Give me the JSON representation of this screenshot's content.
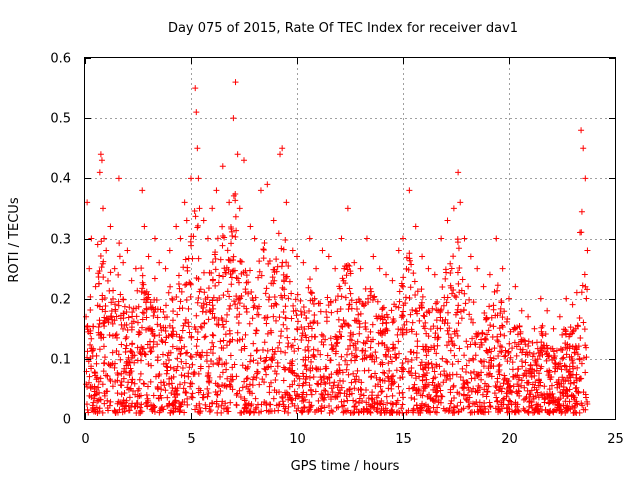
{
  "chart_data": {
    "type": "scatter",
    "title": "Day 075 of 2015, Rate Of TEC Index for receiver dav1",
    "xlabel": "GPS time / hours",
    "ylabel": "ROTI / TECUs",
    "xlim": [
      0,
      25
    ],
    "ylim": [
      0,
      0.6
    ],
    "xticks": [
      "0",
      "5",
      "10",
      "15",
      "20",
      "25"
    ],
    "yticks": [
      "0",
      "0.1",
      "0.2",
      "0.3",
      "0.4",
      "0.5",
      "0.6"
    ],
    "grid": true,
    "marker": "+",
    "series_color": "#ff0000",
    "series": [
      {
        "name": "ROTI",
        "x": [
          0.05,
          0.1,
          0.2,
          0.3,
          0.5,
          0.6,
          0.7,
          0.75,
          0.8,
          0.85,
          0.9,
          1.0,
          1.2,
          1.4,
          1.6,
          1.8,
          2.0,
          2.2,
          2.4,
          2.7,
          2.8,
          3.0,
          3.3,
          3.5,
          3.8,
          4.0,
          4.3,
          4.5,
          4.7,
          4.8,
          5.0,
          5.2,
          5.25,
          5.3,
          5.35,
          5.4,
          5.6,
          5.8,
          6.0,
          6.2,
          6.5,
          6.8,
          7.0,
          7.1,
          7.2,
          7.3,
          7.5,
          7.8,
          8.0,
          8.3,
          8.6,
          8.9,
          9.2,
          9.3,
          9.5,
          9.8,
          10.0,
          10.3,
          10.6,
          10.9,
          11.2,
          11.5,
          11.8,
          12.1,
          12.4,
          12.7,
          13.0,
          13.3,
          13.6,
          13.9,
          14.2,
          14.5,
          14.8,
          15.0,
          15.3,
          15.6,
          15.9,
          16.2,
          16.5,
          16.8,
          17.1,
          17.4,
          17.6,
          17.7,
          17.9,
          18.2,
          18.5,
          18.8,
          19.1,
          19.4,
          19.7,
          20.0,
          20.3,
          20.6,
          20.9,
          21.2,
          21.5,
          21.8,
          22.1,
          22.4,
          22.7,
          23.0,
          23.2,
          23.35,
          23.4,
          23.5,
          23.6,
          23.7
        ],
        "y": [
          0.17,
          0.36,
          0.25,
          0.3,
          0.22,
          0.29,
          0.41,
          0.44,
          0.43,
          0.35,
          0.3,
          0.28,
          0.32,
          0.25,
          0.4,
          0.26,
          0.28,
          0.23,
          0.25,
          0.38,
          0.32,
          0.27,
          0.3,
          0.26,
          0.25,
          0.28,
          0.32,
          0.3,
          0.36,
          0.33,
          0.4,
          0.55,
          0.51,
          0.45,
          0.4,
          0.35,
          0.33,
          0.3,
          0.35,
          0.38,
          0.42,
          0.36,
          0.5,
          0.56,
          0.44,
          0.35,
          0.43,
          0.32,
          0.3,
          0.38,
          0.39,
          0.33,
          0.44,
          0.45,
          0.36,
          0.28,
          0.27,
          0.26,
          0.3,
          0.25,
          0.28,
          0.27,
          0.25,
          0.3,
          0.35,
          0.26,
          0.25,
          0.3,
          0.27,
          0.25,
          0.24,
          0.23,
          0.28,
          0.3,
          0.38,
          0.32,
          0.27,
          0.25,
          0.24,
          0.3,
          0.33,
          0.35,
          0.41,
          0.36,
          0.3,
          0.27,
          0.25,
          0.22,
          0.24,
          0.3,
          0.25,
          0.2,
          0.22,
          0.18,
          0.17,
          0.15,
          0.2,
          0.18,
          0.15,
          0.17,
          0.2,
          0.19,
          0.21,
          0.31,
          0.48,
          0.45,
          0.4,
          0.28
        ]
      }
    ]
  }
}
